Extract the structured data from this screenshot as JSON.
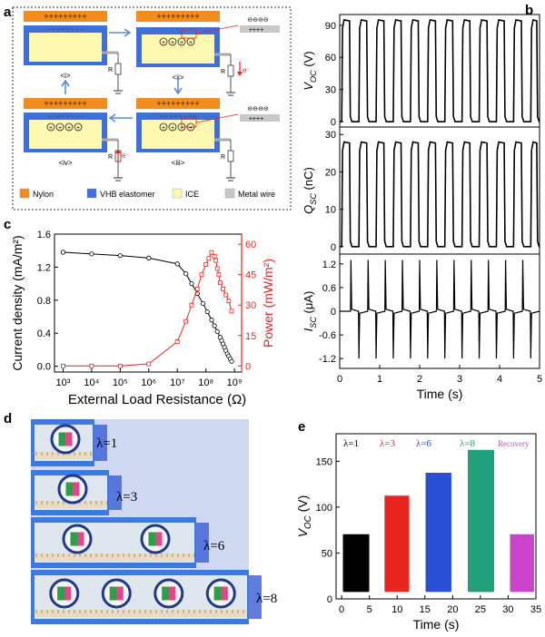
{
  "panel_letters": {
    "a": "a",
    "b": "b",
    "c": "c",
    "d": "d",
    "e": "e"
  },
  "colors": {
    "nylon": "#f28c1e",
    "vhb": "#3f6fd8",
    "ice": "#fff8b0",
    "metal": "#c8c8c8",
    "red": "#e8251f",
    "blue": "#2a4fd6",
    "green": "#1fa07a",
    "magenta": "#cc44cc"
  },
  "schematic": {
    "stage_labels": [
      "<i>",
      "<ii>",
      "<iii>",
      "<iv>"
    ],
    "plus_row": "+++++++++",
    "minus_row": "− − − − − − − −",
    "resistor_label": "R",
    "electron_label": "e⁻",
    "inset_minus": "⊖⊖⊖⊖",
    "inset_plus": "++++",
    "legend": [
      "Nylon",
      "VHB elastomer",
      "ICE",
      "Metal wire"
    ]
  },
  "chart_data": [
    {
      "type": "line",
      "id": "b_top",
      "ylabel_main": "V",
      "ylabel_sub": "OC",
      "ylabel_unit": " (V)",
      "yticks": [
        "0",
        "30",
        "60",
        "90"
      ],
      "ylim": [
        -5,
        100
      ],
      "xlim": [
        0,
        5
      ],
      "series": [
        {
          "period": 0.43,
          "duty": 0.5,
          "low": 0,
          "high": 95
        }
      ]
    },
    {
      "type": "line",
      "id": "b_mid",
      "ylabel_main": "Q",
      "ylabel_sub": "SC",
      "ylabel_unit": " (nC)",
      "yticks": [
        "0",
        "10",
        "20",
        "30"
      ],
      "ylim": [
        -2,
        32
      ],
      "xlim": [
        0,
        5
      ],
      "series": [
        {
          "period": 0.43,
          "duty": 0.5,
          "low": 0,
          "high": 28
        }
      ]
    },
    {
      "type": "line",
      "id": "b_bot",
      "ylabel_main": "I",
      "ylabel_sub": "SC",
      "ylabel_unit": " (μA)",
      "yticks": [
        "-1.2",
        "-0.6",
        "0",
        "0.6",
        "1.2"
      ],
      "ylim": [
        -1.45,
        1.45
      ],
      "xlim": [
        0,
        5
      ],
      "xticks": [
        "0",
        "1",
        "2",
        "3",
        "4",
        "5"
      ],
      "xlabel": "Time (s)",
      "series": [
        {
          "period": 0.43,
          "peak_pos": 1.3,
          "peak_neg": -1.2
        }
      ]
    },
    {
      "type": "line",
      "id": "c",
      "xlabel": "External Load Resistance (Ω)",
      "ylabel_left": "Current density (mA/m²)",
      "ylabel_right": "Power (mW/m²)",
      "xticks": [
        "10³",
        "10⁴",
        "10⁵",
        "10⁶",
        "10⁷",
        "10⁸",
        "10⁹"
      ],
      "yticks_left": [
        "0.0",
        "0.4",
        "0.8",
        "1.2",
        "1.6"
      ],
      "yticks_right": [
        "0",
        "15",
        "30",
        "45",
        "60"
      ],
      "xlim_log": [
        2.7,
        9.25
      ],
      "ylim_left": [
        -0.07,
        1.6
      ],
      "ylim_right": [
        -3,
        65
      ],
      "series": [
        {
          "name": "Current density",
          "axis": "left",
          "x_log": [
            3,
            4,
            5,
            6,
            7,
            7.3,
            7.5,
            7.7,
            7.9,
            8.05,
            8.2,
            8.3,
            8.4,
            8.5,
            8.55,
            8.6,
            8.65,
            8.7,
            8.75,
            8.8,
            8.85,
            8.9
          ],
          "values": [
            1.38,
            1.36,
            1.34,
            1.31,
            1.24,
            1.12,
            1.0,
            0.88,
            0.76,
            0.66,
            0.56,
            0.49,
            0.42,
            0.35,
            0.31,
            0.27,
            0.23,
            0.19,
            0.15,
            0.12,
            0.09,
            0.06
          ]
        },
        {
          "name": "Power",
          "axis": "right",
          "x_log": [
            3,
            4,
            5,
            6,
            7,
            7.3,
            7.5,
            7.7,
            7.85,
            8.0,
            8.1,
            8.2,
            8.3,
            8.35,
            8.4,
            8.45,
            8.5,
            8.6,
            8.7,
            8.8,
            8.9
          ],
          "values": [
            0,
            0,
            0,
            1,
            12,
            22,
            30,
            38,
            45,
            50,
            53,
            56,
            54,
            52,
            48,
            45,
            41,
            38,
            35,
            32,
            27
          ]
        }
      ]
    },
    {
      "type": "line",
      "id": "e",
      "ylabel_main": "V",
      "ylabel_sub": "OC",
      "ylabel_unit": " (V)",
      "xlabel": "Time (s)",
      "xticks": [
        "0",
        "5",
        "10",
        "15",
        "20",
        "25",
        "30",
        "35"
      ],
      "yticks": [
        "0",
        "50",
        "100",
        "150"
      ],
      "xlim": [
        -1,
        35
      ],
      "ylim": [
        0,
        180
      ],
      "series": [
        {
          "name": "λ=1",
          "x0": 0.3,
          "x1": 4.8,
          "high": 70,
          "low": 8
        },
        {
          "name": "λ=3",
          "x0": 7.8,
          "x1": 12.0,
          "high": 112,
          "low": 8
        },
        {
          "name": "λ=6",
          "x0": 15.2,
          "x1": 19.6,
          "high": 137,
          "low": 8
        },
        {
          "name": "λ=8",
          "x0": 22.8,
          "x1": 27.3,
          "high": 162,
          "low": 8
        },
        {
          "name": "Recovery",
          "x0": 30.4,
          "x1": 34.5,
          "high": 70,
          "low": 8
        }
      ]
    }
  ],
  "photo": {
    "labels": [
      "λ=1",
      "λ=3",
      "λ=6",
      "λ=8"
    ]
  }
}
